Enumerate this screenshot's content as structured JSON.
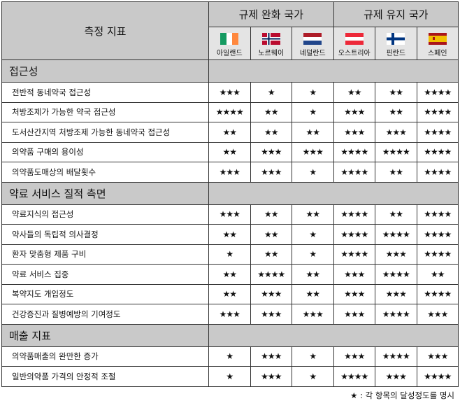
{
  "header": {
    "metric": "측정 지표",
    "group_relaxed": "규제 완화 국가",
    "group_maintained": "규제 유지 국가"
  },
  "countries": [
    {
      "name": "아일랜드",
      "flag": "ireland-flag",
      "colors": [
        "#169b62",
        "#ffffff",
        "#ff883e"
      ]
    },
    {
      "name": "노르웨이",
      "flag": "norway-flag",
      "colors": [
        "#ba0c2f",
        "#ffffff",
        "#00205b"
      ]
    },
    {
      "name": "네덜란드",
      "flag": "netherlands-flag",
      "colors": [
        "#ae1c28",
        "#ffffff",
        "#21468b"
      ]
    },
    {
      "name": "오스트리아",
      "flag": "austria-flag",
      "colors": [
        "#ed2939",
        "#ffffff",
        "#ed2939"
      ]
    },
    {
      "name": "핀란드",
      "flag": "finland-flag",
      "colors": [
        "#ffffff",
        "#003580"
      ]
    },
    {
      "name": "스페인",
      "flag": "spain-flag",
      "colors": [
        "#aa151b",
        "#f1bf00",
        "#aa151b"
      ]
    }
  ],
  "sections": [
    {
      "title": "접근성",
      "rows": [
        {
          "label": "전반적 동네약국 접근성",
          "ratings": [
            "★★★",
            "★",
            "★",
            "★★",
            "★★",
            "★★★★"
          ]
        },
        {
          "label": "처방조제가 가능한 약국 접근성",
          "ratings": [
            "★★★★",
            "★★",
            "★",
            "★★★",
            "★★",
            "★★★★"
          ]
        },
        {
          "label": "도서산간지역 처방조제 가능한 동네약국 접근성",
          "ratings": [
            "★★",
            "★★",
            "★★",
            "★★★",
            "★★★",
            "★★★★"
          ]
        },
        {
          "label": "의약품 구매의 용이성",
          "ratings": [
            "★★",
            "★★★",
            "★★★",
            "★★★★",
            "★★★★",
            "★★★★"
          ]
        },
        {
          "label": "의약품도매상의 배달횟수",
          "ratings": [
            "★★★",
            "★★★",
            "★",
            "★★★★",
            "★★",
            "★★★★"
          ]
        }
      ]
    },
    {
      "title": "약료 서비스 질적 측면",
      "rows": [
        {
          "label": "약료지식의 접근성",
          "ratings": [
            "★★★",
            "★★",
            "★★",
            "★★★★",
            "★★",
            "★★★★"
          ]
        },
        {
          "label": "약사들의 독립적 의사결정",
          "ratings": [
            "★★",
            "★★",
            "★",
            "★★★★",
            "★★★★",
            "★★★★"
          ]
        },
        {
          "label": "환자 맞춤형 제품 구비",
          "ratings": [
            "★",
            "★★",
            "★",
            "★★★★",
            "★★★",
            "★★★★"
          ]
        },
        {
          "label": "약료 서비스 집중",
          "ratings": [
            "★★",
            "★★★★",
            "★★",
            "★★★",
            "★★★★",
            "★★"
          ]
        },
        {
          "label": "복약지도 개입정도",
          "ratings": [
            "★★",
            "★★★",
            "★★",
            "★★★",
            "★★★",
            "★★★★"
          ]
        },
        {
          "label": "건강증진과 질병예방의 기여정도",
          "ratings": [
            "★★★",
            "★★★",
            "★★★",
            "★★★",
            "★★★★",
            "★★★"
          ]
        }
      ]
    },
    {
      "title": "매출 지표",
      "rows": [
        {
          "label": "의약품매출의 완만한 증가",
          "ratings": [
            "★",
            "★★★",
            "★",
            "★★★",
            "★★★★",
            "★★★"
          ]
        },
        {
          "label": "일반의약품 가격의 안정적 조절",
          "ratings": [
            "★",
            "★★★",
            "★",
            "★★★★",
            "★★★",
            "★★★★"
          ]
        }
      ]
    }
  ],
  "footnote": "★ : 각 항목의 달성정도를 명시"
}
